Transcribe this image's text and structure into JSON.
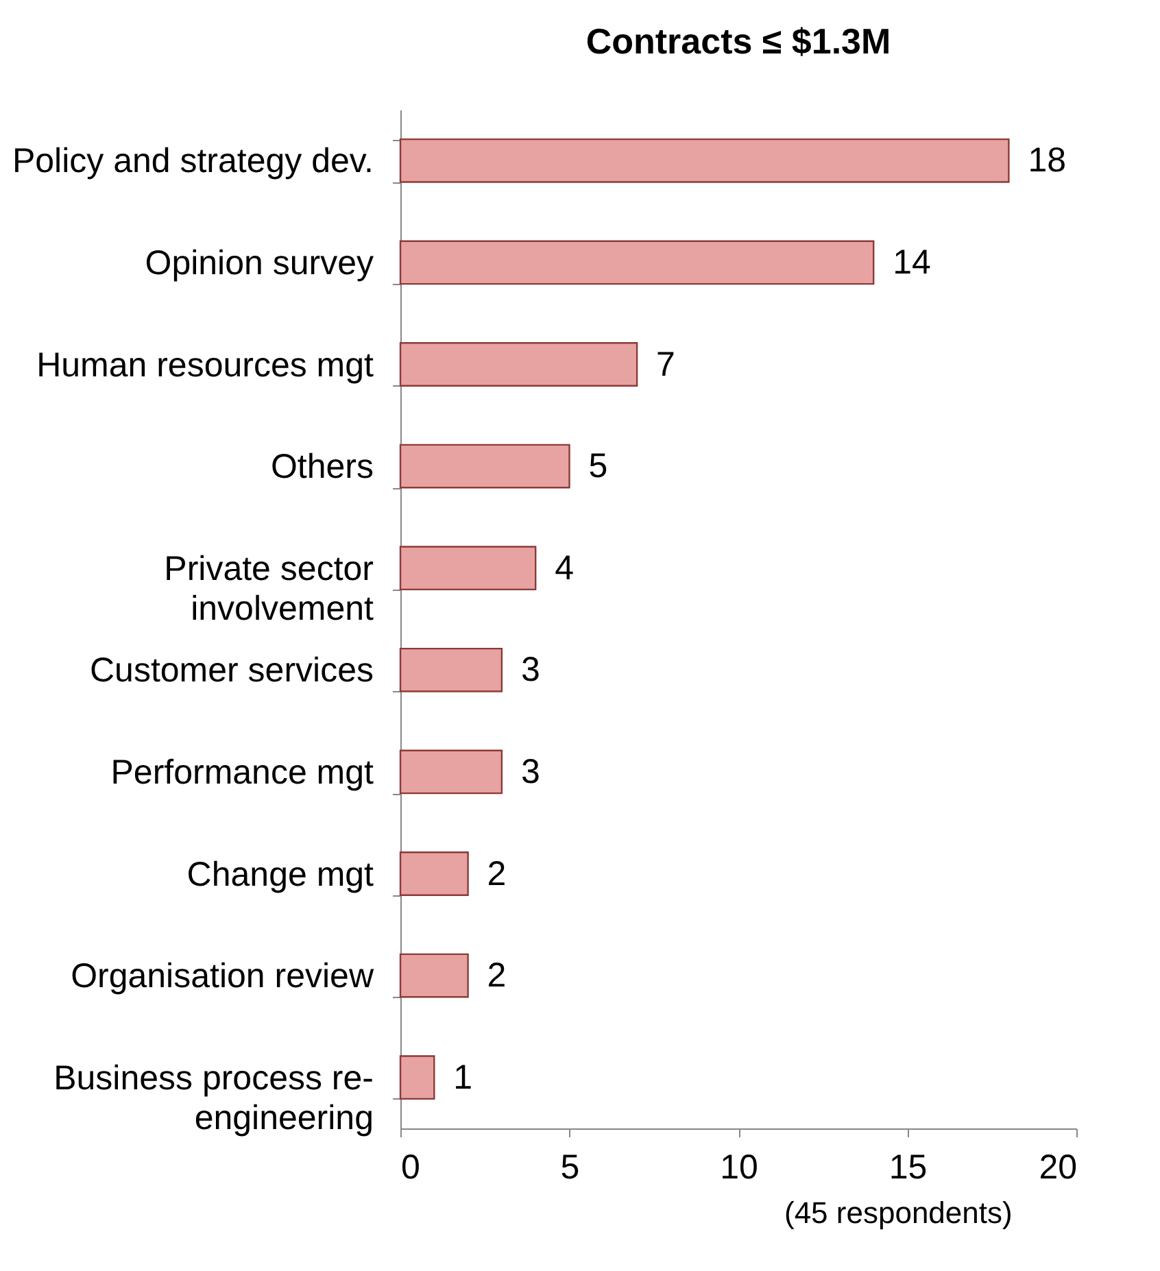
{
  "chart_data": {
    "type": "bar",
    "orientation": "horizontal",
    "title": "Contracts ≤ $1.3M",
    "categories": [
      "Policy and strategy dev.",
      "Opinion survey",
      "Human resources mgt",
      "Others",
      "Private sector involvement",
      "Customer services",
      "Performance mgt",
      "Change mgt",
      "Organisation review",
      "Business process re-engineering"
    ],
    "values": [
      18,
      14,
      7,
      5,
      4,
      3,
      3,
      2,
      2,
      1
    ],
    "color": "#e6a3a1",
    "xlim": [
      0,
      20
    ],
    "xticks": [
      0,
      5,
      10,
      15,
      20
    ],
    "data_labels": true,
    "grid": false,
    "annotations": [
      "(45 respondents)"
    ]
  }
}
